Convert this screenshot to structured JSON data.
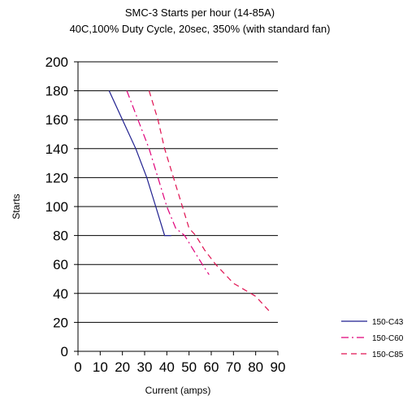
{
  "chart_data": {
    "type": "line",
    "title": "SMC-3 Starts per hour (14-85A)",
    "subtitle": "40C,100% Duty Cycle, 20sec, 350% (with standard fan)",
    "xlabel": "Current (amps)",
    "ylabel": "Starts",
    "xlim": [
      0,
      90
    ],
    "ylim": [
      0,
      200
    ],
    "x_ticks": [
      "0",
      "10",
      "20",
      "30",
      "40",
      "50",
      "60",
      "70",
      "80",
      "90"
    ],
    "y_ticks": [
      "0",
      "20",
      "40",
      "60",
      "80",
      "100",
      "120",
      "140",
      "160",
      "180",
      "200"
    ],
    "grid": "horizontal",
    "legend_position": "bottom-right",
    "series": [
      {
        "name": "150-C43",
        "color": "#1f1f8f",
        "style": "solid",
        "x": [
          14,
          20,
          26,
          31,
          35,
          39,
          42
        ],
        "y": [
          180,
          160,
          140,
          120,
          100,
          80,
          80
        ]
      },
      {
        "name": "150-C60",
        "color": "#e0007a",
        "style": "dash-dot",
        "x": [
          22,
          27,
          32,
          36,
          40,
          44,
          48,
          52,
          56,
          59
        ],
        "y": [
          180,
          160,
          140,
          120,
          100,
          85,
          80,
          70,
          60,
          53
        ]
      },
      {
        "name": "150-C85",
        "color": "#e01050",
        "style": "dashed",
        "x": [
          32,
          36,
          39,
          43,
          47,
          50,
          53,
          57,
          62,
          70,
          80,
          86
        ],
        "y": [
          180,
          160,
          140,
          120,
          100,
          85,
          80,
          70,
          60,
          47,
          38,
          28
        ]
      }
    ]
  }
}
